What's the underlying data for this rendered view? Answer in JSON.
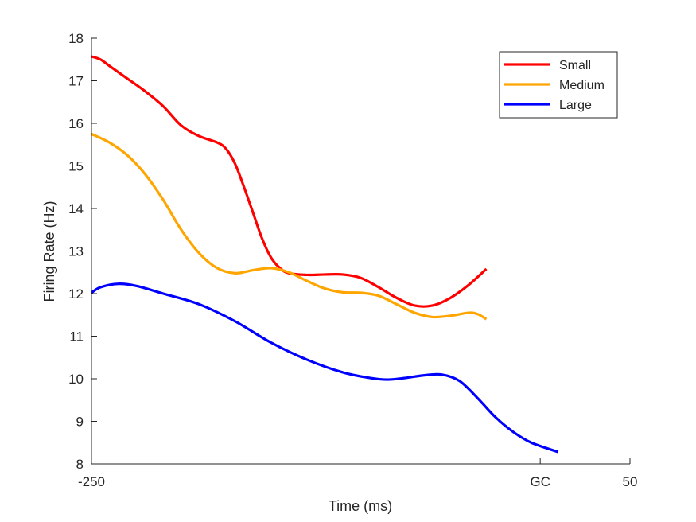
{
  "chart_data": {
    "type": "line",
    "xlabel": "Time (ms)",
    "ylabel": "Firing Rate (Hz)",
    "xlim": [
      -250,
      50
    ],
    "ylim": [
      8,
      18
    ],
    "xticks": [
      {
        "value": -250,
        "label": "-250"
      },
      {
        "value": 0,
        "label": "GC"
      },
      {
        "value": 50,
        "label": "50"
      }
    ],
    "yticks": [
      8,
      9,
      10,
      11,
      12,
      13,
      14,
      15,
      16,
      17,
      18
    ],
    "legend_position": "top-right",
    "grid": false,
    "series": [
      {
        "name": "Small",
        "color": "#ff0000",
        "points": [
          [
            -250,
            17.57
          ],
          [
            -245,
            17.5
          ],
          [
            -240,
            17.35
          ],
          [
            -230,
            17.05
          ],
          [
            -220,
            16.75
          ],
          [
            -210,
            16.4
          ],
          [
            -200,
            15.95
          ],
          [
            -190,
            15.7
          ],
          [
            -180,
            15.55
          ],
          [
            -175,
            15.4
          ],
          [
            -170,
            15.05
          ],
          [
            -165,
            14.5
          ],
          [
            -160,
            13.9
          ],
          [
            -155,
            13.3
          ],
          [
            -150,
            12.85
          ],
          [
            -145,
            12.6
          ],
          [
            -140,
            12.48
          ],
          [
            -130,
            12.44
          ],
          [
            -120,
            12.45
          ],
          [
            -110,
            12.45
          ],
          [
            -100,
            12.37
          ],
          [
            -90,
            12.15
          ],
          [
            -80,
            11.9
          ],
          [
            -70,
            11.72
          ],
          [
            -60,
            11.72
          ],
          [
            -50,
            11.9
          ],
          [
            -40,
            12.2
          ],
          [
            -30,
            12.58
          ]
        ]
      },
      {
        "name": "Medium",
        "color": "#ffa500",
        "points": [
          [
            -250,
            15.75
          ],
          [
            -240,
            15.55
          ],
          [
            -230,
            15.25
          ],
          [
            -220,
            14.8
          ],
          [
            -210,
            14.2
          ],
          [
            -200,
            13.5
          ],
          [
            -190,
            12.95
          ],
          [
            -180,
            12.6
          ],
          [
            -170,
            12.48
          ],
          [
            -160,
            12.55
          ],
          [
            -150,
            12.6
          ],
          [
            -140,
            12.5
          ],
          [
            -130,
            12.3
          ],
          [
            -120,
            12.12
          ],
          [
            -110,
            12.03
          ],
          [
            -100,
            12.02
          ],
          [
            -90,
            11.95
          ],
          [
            -80,
            11.75
          ],
          [
            -70,
            11.55
          ],
          [
            -60,
            11.45
          ],
          [
            -50,
            11.48
          ],
          [
            -40,
            11.55
          ],
          [
            -35,
            11.52
          ],
          [
            -30,
            11.4
          ]
        ]
      },
      {
        "name": "Large",
        "color": "#0000ff",
        "points": [
          [
            -250,
            12.02
          ],
          [
            -245,
            12.15
          ],
          [
            -235,
            12.23
          ],
          [
            -225,
            12.18
          ],
          [
            -210,
            12.0
          ],
          [
            -190,
            11.75
          ],
          [
            -170,
            11.35
          ],
          [
            -150,
            10.85
          ],
          [
            -130,
            10.45
          ],
          [
            -110,
            10.15
          ],
          [
            -95,
            10.02
          ],
          [
            -85,
            9.98
          ],
          [
            -75,
            10.02
          ],
          [
            -65,
            10.08
          ],
          [
            -55,
            10.1
          ],
          [
            -45,
            9.95
          ],
          [
            -35,
            9.55
          ],
          [
            -25,
            9.1
          ],
          [
            -15,
            8.75
          ],
          [
            -5,
            8.5
          ],
          [
            10,
            8.28
          ]
        ]
      }
    ]
  }
}
